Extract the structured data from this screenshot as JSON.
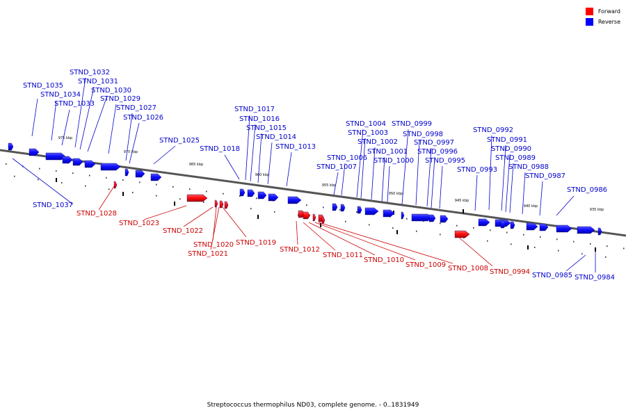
{
  "legend": {
    "forward_label": "Forward",
    "reverse_label": "Reverse",
    "forward_color": "#ff0000",
    "reverse_color": "#0000ff"
  },
  "caption": "Streptococcus thermophilus ND03, complete genome. - 0..1831949",
  "scale_labels": [
    "975 kbp",
    "970 kbp",
    "965 kbp",
    "960 kbp",
    "955 kbp",
    "950 kbp",
    "945 kbp",
    "940 kbp",
    "935 kbp"
  ],
  "reverse_genes": [
    "STND_1037",
    "STND_1035",
    "STND_1034",
    "STND_1033",
    "STND_1032",
    "STND_1031",
    "STND_1030",
    "STND_1029",
    "STND_1027",
    "STND_1026",
    "STND_1025",
    "STND_1018",
    "STND_1017",
    "STND_1016",
    "STND_1015",
    "STND_1014",
    "STND_1013",
    "STND_1007",
    "STND_1006",
    "STND_1004",
    "STND_1003",
    "STND_1002",
    "STND_1001",
    "STND_1000",
    "STND_0999",
    "STND_0998",
    "STND_0997",
    "STND_0996",
    "STND_0995",
    "STND_0993",
    "STND_0992",
    "STND_0991",
    "STND_0990",
    "STND_0989",
    "STND_0988",
    "STND_0987",
    "STND_0986",
    "STND_0985",
    "STND_0984"
  ],
  "forward_genes": [
    "STND_1028",
    "STND_1023",
    "STND_1022",
    "STND_1020",
    "STND_1021",
    "STND_1019",
    "STND_1012",
    "STND_1011",
    "STND_1010",
    "STND_1009",
    "STND_1008",
    "STND_0994"
  ]
}
